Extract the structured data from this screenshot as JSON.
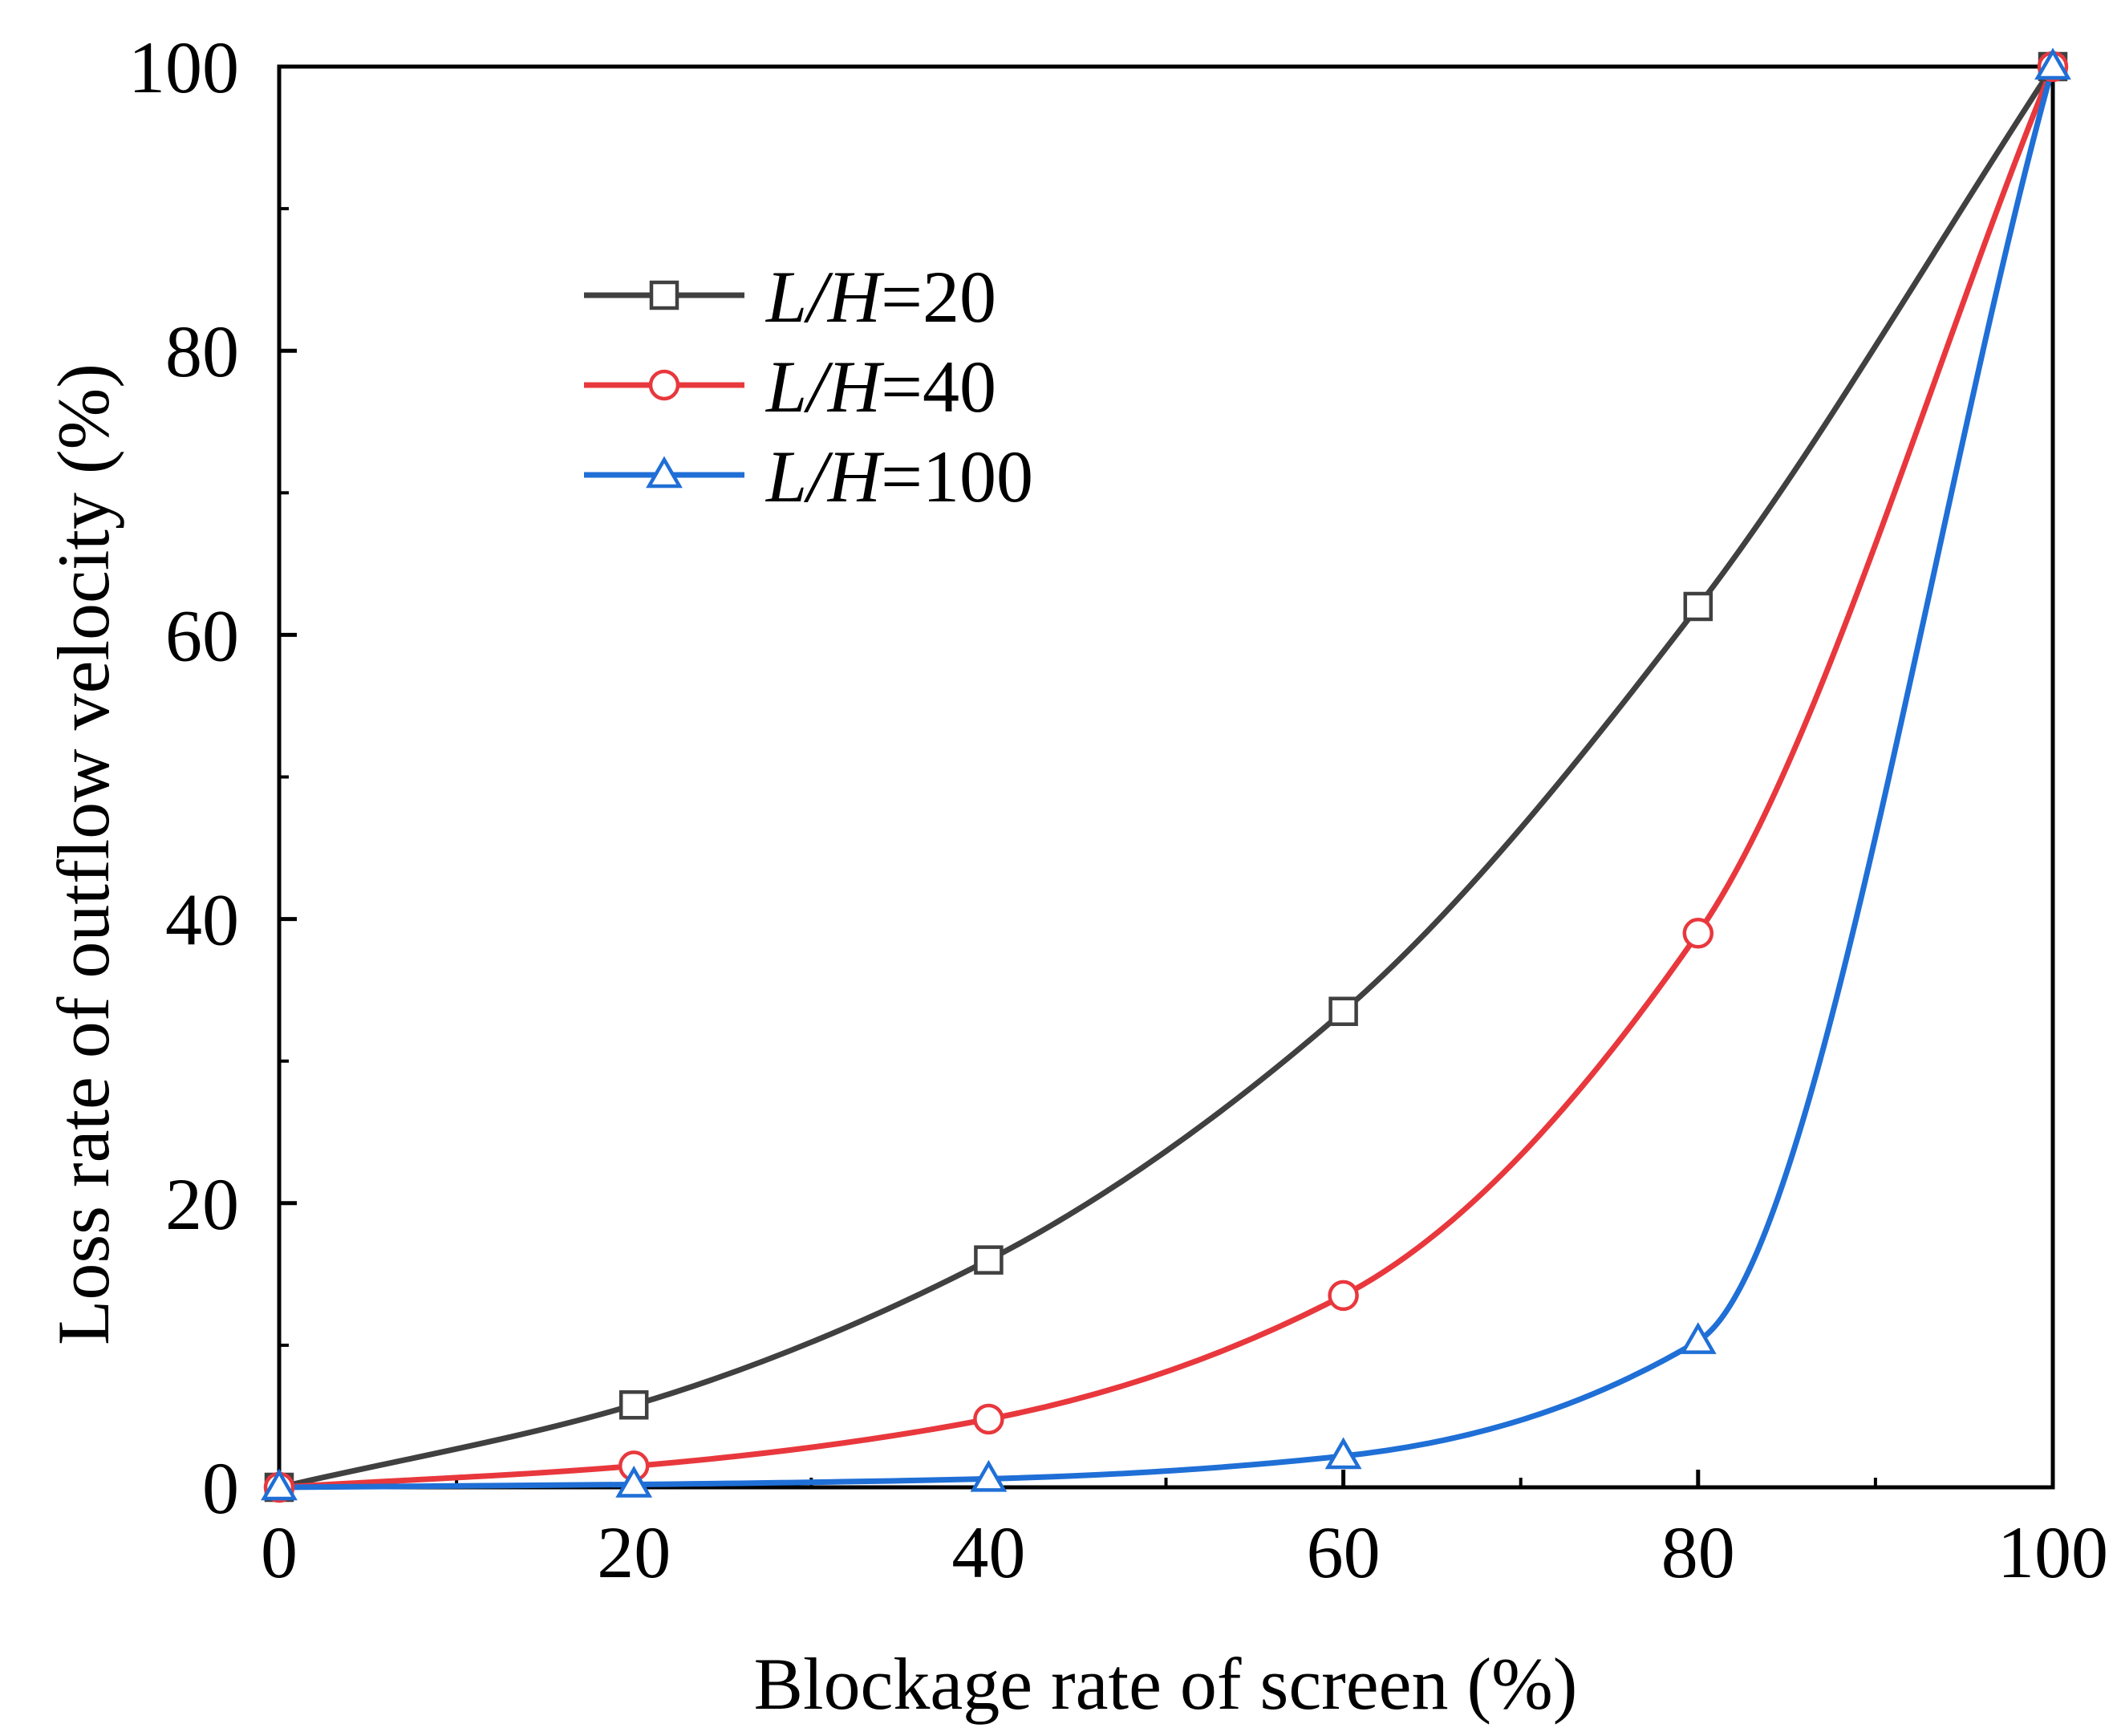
{
  "chart_data": {
    "type": "line",
    "title": "",
    "xlabel": "Blockage rate of screen (%)",
    "ylabel": "Loss rate of outflow velocity  (%)",
    "xlim": [
      0,
      100
    ],
    "ylim": [
      0,
      100
    ],
    "xticks": [
      0,
      20,
      40,
      60,
      80,
      100
    ],
    "yticks": [
      0,
      20,
      40,
      60,
      80,
      100
    ],
    "x": [
      0,
      20,
      40,
      60,
      80,
      100
    ],
    "grid": false,
    "legend_position": "upper-left",
    "series": [
      {
        "name": "L/H=20",
        "name_italic": "L/H",
        "name_value": "=20",
        "color": "#404040",
        "marker": "square",
        "values": [
          0,
          5.8,
          16,
          33.5,
          62,
          100
        ]
      },
      {
        "name": "L/H=40",
        "name_italic": "L/H",
        "name_value": "=40",
        "color": "#e8383d",
        "marker": "circle",
        "values": [
          0,
          1.5,
          4.8,
          13.5,
          39,
          100
        ]
      },
      {
        "name": "L/H=100",
        "name_italic": "L/H",
        "name_value": "=100",
        "color": "#1f6fd6",
        "marker": "triangle",
        "values": [
          0,
          0.2,
          0.6,
          2.2,
          10.3,
          100
        ]
      }
    ]
  }
}
